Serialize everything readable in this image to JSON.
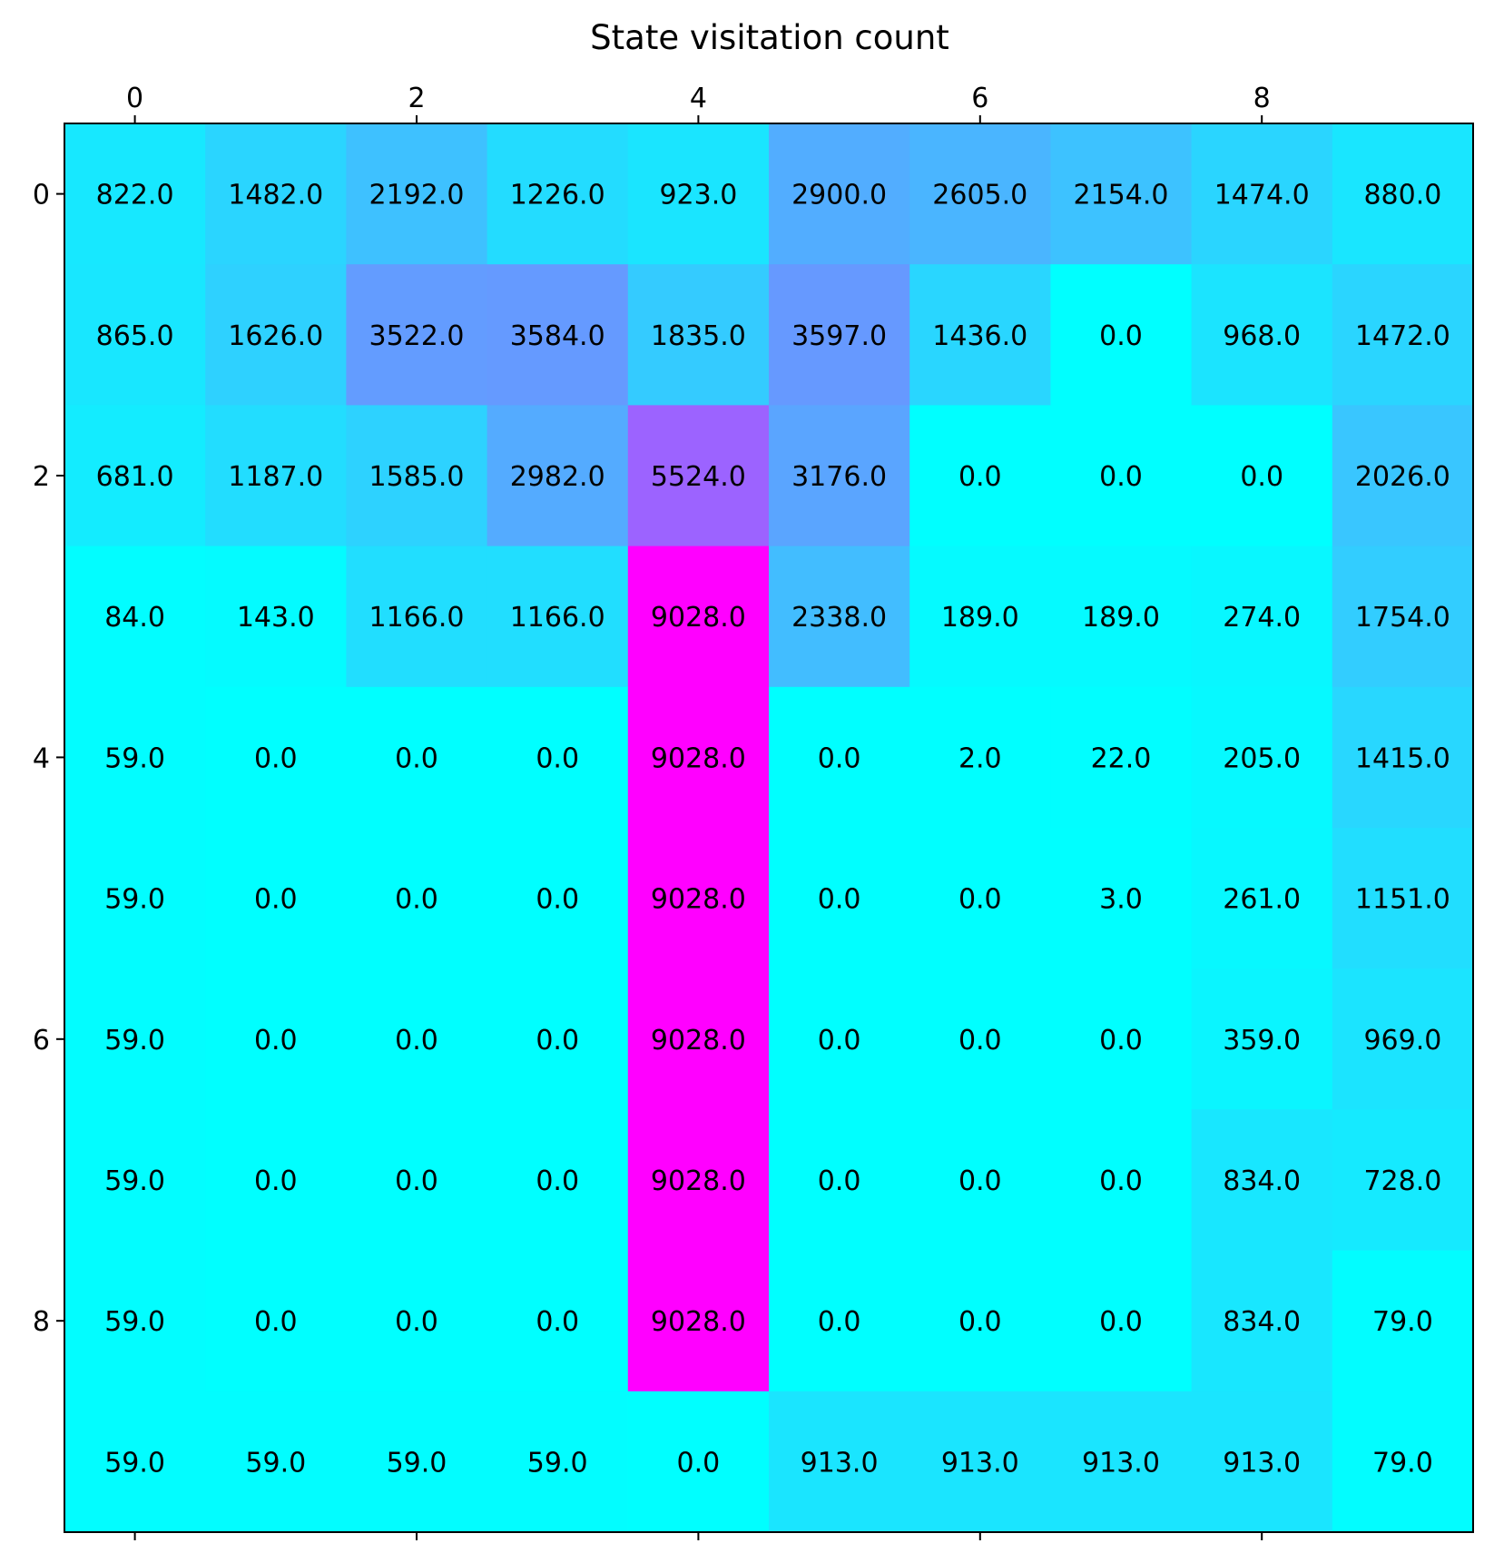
{
  "chart_data": {
    "type": "heatmap",
    "title": "State visitation count",
    "xlabel": "",
    "ylabel": "",
    "colormap": "cool",
    "color_min": "#00ffff",
    "color_max": "#ff00ff",
    "value_range": [
      0,
      9028
    ],
    "x_ticks": [
      0,
      2,
      4,
      6,
      8
    ],
    "y_ticks": [
      0,
      2,
      4,
      6,
      8
    ],
    "x_tick_position": "top",
    "value_format": "one decimal",
    "grid": false,
    "values": [
      [
        822,
        1482,
        2192,
        1226,
        923,
        2900,
        2605,
        2154,
        1474,
        880
      ],
      [
        865,
        1626,
        3522,
        3584,
        1835,
        3597,
        1436,
        0,
        968,
        1472
      ],
      [
        681,
        1187,
        1585,
        2982,
        5524,
        3176,
        0,
        0,
        0,
        2026
      ],
      [
        84,
        143,
        1166,
        1166,
        9028,
        2338,
        189,
        189,
        274,
        1754
      ],
      [
        59,
        0,
        0,
        0,
        9028,
        0,
        2,
        22,
        205,
        1415
      ],
      [
        59,
        0,
        0,
        0,
        9028,
        0,
        0,
        3,
        261,
        1151
      ],
      [
        59,
        0,
        0,
        0,
        9028,
        0,
        0,
        0,
        359,
        969
      ],
      [
        59,
        0,
        0,
        0,
        9028,
        0,
        0,
        0,
        834,
        728
      ],
      [
        59,
        0,
        0,
        0,
        9028,
        0,
        0,
        0,
        834,
        79
      ],
      [
        59,
        59,
        59,
        59,
        0,
        913,
        913,
        913,
        913,
        79
      ]
    ]
  }
}
